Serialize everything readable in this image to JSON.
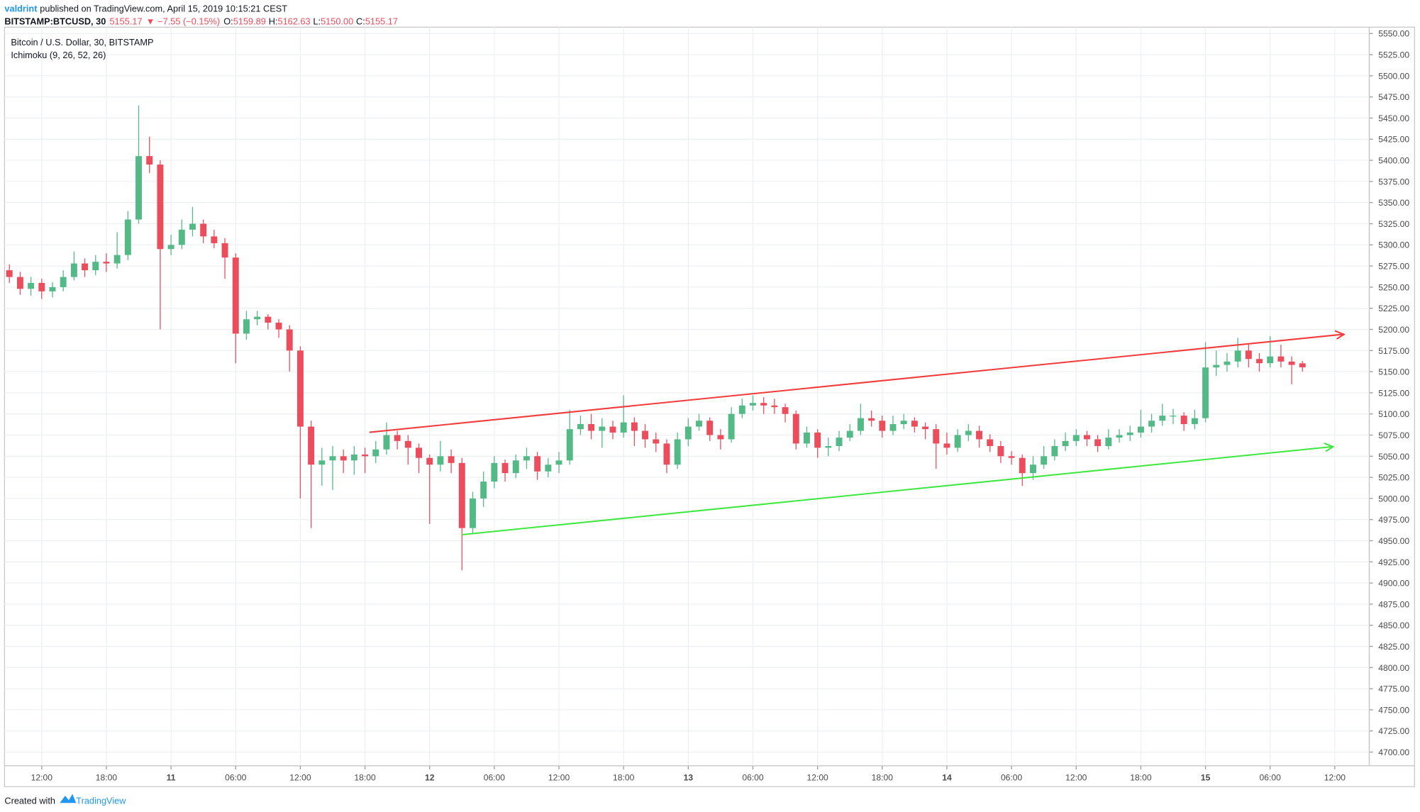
{
  "header": {
    "user": "valdrint",
    "published": "published on TradingView.com, April 15, 2019 10:15:21 CEST",
    "symbol": "BITSTAMP:BTCUSD, 30",
    "last": "5155.17",
    "arrow": "▼",
    "change": "−7.55 (−0.15%)",
    "ohlc": [
      {
        "label": "O:",
        "value": "5159.89"
      },
      {
        "label": "H:",
        "value": "5162.63"
      },
      {
        "label": "L:",
        "value": "5150.00"
      },
      {
        "label": "C:",
        "value": "5155.17"
      }
    ]
  },
  "footer": {
    "created": "Created with",
    "brand": "TradingView"
  },
  "chart_data": {
    "type": "candlestick",
    "title": "Bitcoin / U.S. Dollar, 30, BITSTAMP",
    "indicator": "Ichimoku (9, 26, 52, 26)",
    "up_color": "#53b987",
    "down_color": "#eb4d5c",
    "grid": true,
    "open": [
      5270,
      5262,
      5248,
      5255,
      5245,
      5250,
      5262,
      5278,
      5270,
      5280,
      5278,
      5288,
      5330,
      5405,
      5395,
      5295,
      5300,
      5318,
      5325,
      5310,
      5302,
      5285,
      5195,
      5212,
      5215,
      5208,
      5200,
      5175,
      5085,
      5040,
      5045,
      5050,
      5045,
      5052,
      5050,
      5058,
      5075,
      5068,
      5060,
      5048,
      5040,
      5050,
      5042,
      4965,
      5000,
      5020,
      5042,
      5030,
      5045,
      5050,
      5032,
      5040,
      5045,
      5082,
      5088,
      5080,
      5085,
      5078,
      5090,
      5080,
      5070,
      5065,
      5040,
      5070,
      5085,
      5092,
      5075,
      5070,
      5100,
      5110,
      5113,
      5110,
      5108,
      5100,
      5065,
      5078,
      5060,
      5062,
      5072,
      5080,
      5095,
      5092,
      5080,
      5088,
      5092,
      5085,
      5082,
      5065,
      5060,
      5075,
      5080,
      5070,
      5062,
      5050,
      5048,
      5030,
      5040,
      5050,
      5062,
      5068,
      5075,
      5070,
      5062,
      5072,
      5075,
      5078,
      5085,
      5092,
      5098,
      5098,
      5088,
      5095,
      5155,
      5158,
      5162,
      5175,
      5165,
      5160,
      5168,
      5162,
      5159.89
    ],
    "high": [
      5277,
      5268,
      5262,
      5260,
      5256,
      5270,
      5292,
      5284,
      5288,
      5290,
      5315,
      5340,
      5465,
      5428,
      5400,
      5312,
      5330,
      5345,
      5330,
      5318,
      5308,
      5290,
      5222,
      5222,
      5218,
      5212,
      5205,
      5180,
      5092,
      5060,
      5062,
      5058,
      5062,
      5060,
      5068,
      5090,
      5080,
      5075,
      5065,
      5052,
      5068,
      5058,
      5048,
      5008,
      5032,
      5050,
      5046,
      5052,
      5060,
      5055,
      5048,
      5055,
      5105,
      5098,
      5100,
      5095,
      5092,
      5122,
      5096,
      5088,
      5078,
      5070,
      5078,
      5095,
      5100,
      5096,
      5082,
      5108,
      5118,
      5122,
      5120,
      5118,
      5112,
      5104,
      5085,
      5082,
      5072,
      5080,
      5088,
      5112,
      5104,
      5098,
      5098,
      5100,
      5096,
      5090,
      5088,
      5078,
      5082,
      5088,
      5086,
      5076,
      5068,
      5056,
      5052,
      5050,
      5062,
      5070,
      5078,
      5082,
      5080,
      5075,
      5082,
      5082,
      5086,
      5105,
      5100,
      5112,
      5106,
      5102,
      5105,
      5185,
      5175,
      5172,
      5190,
      5182,
      5172,
      5192,
      5182,
      5168,
      5162.63
    ],
    "low": [
      5255,
      5241,
      5240,
      5236,
      5238,
      5245,
      5258,
      5262,
      5264,
      5268,
      5272,
      5282,
      5325,
      5385,
      5200,
      5288,
      5295,
      5310,
      5302,
      5296,
      5260,
      5160,
      5188,
      5205,
      5200,
      5190,
      5150,
      5000,
      4965,
      5015,
      5010,
      5030,
      5028,
      5030,
      5042,
      5052,
      5058,
      5040,
      5030,
      4970,
      5032,
      5030,
      4915,
      4958,
      4990,
      5012,
      5020,
      5024,
      5035,
      5022,
      5025,
      5030,
      5040,
      5075,
      5070,
      5060,
      5070,
      5072,
      5062,
      5060,
      5055,
      5030,
      5035,
      5062,
      5080,
      5068,
      5058,
      5066,
      5095,
      5104,
      5100,
      5100,
      5090,
      5058,
      5060,
      5048,
      5050,
      5056,
      5068,
      5075,
      5085,
      5072,
      5075,
      5082,
      5078,
      5070,
      5035,
      5052,
      5055,
      5068,
      5060,
      5055,
      5042,
      5040,
      5015,
      5022,
      5035,
      5045,
      5056,
      5062,
      5062,
      5055,
      5058,
      5066,
      5068,
      5072,
      5078,
      5086,
      5088,
      5080,
      5082,
      5090,
      5145,
      5150,
      5155,
      5155,
      5150,
      5155,
      5155,
      5135,
      5150.0
    ],
    "close": [
      5262,
      5248,
      5255,
      5245,
      5250,
      5262,
      5278,
      5270,
      5280,
      5278,
      5288,
      5330,
      5405,
      5395,
      5295,
      5300,
      5318,
      5325,
      5310,
      5302,
      5285,
      5195,
      5212,
      5215,
      5208,
      5200,
      5175,
      5085,
      5040,
      5045,
      5050,
      5045,
      5052,
      5050,
      5058,
      5075,
      5068,
      5060,
      5048,
      5040,
      5050,
      5042,
      4965,
      5000,
      5020,
      5042,
      5030,
      5045,
      5050,
      5032,
      5040,
      5045,
      5082,
      5088,
      5080,
      5085,
      5078,
      5090,
      5080,
      5070,
      5065,
      5040,
      5070,
      5085,
      5092,
      5075,
      5070,
      5100,
      5110,
      5113,
      5110,
      5108,
      5100,
      5065,
      5078,
      5060,
      5062,
      5072,
      5080,
      5095,
      5092,
      5080,
      5088,
      5092,
      5085,
      5082,
      5065,
      5060,
      5075,
      5080,
      5070,
      5062,
      5050,
      5048,
      5030,
      5040,
      5050,
      5062,
      5068,
      5075,
      5070,
      5062,
      5072,
      5075,
      5078,
      5085,
      5092,
      5098,
      5098,
      5088,
      5095,
      5155,
      5158,
      5162,
      5175,
      5165,
      5160,
      5168,
      5162,
      5158,
      5155.17
    ],
    "xlim": [
      -0.45,
      126.2
    ],
    "xticks": [
      {
        "value": 3,
        "label": "12:00"
      },
      {
        "value": 9,
        "label": "18:00"
      },
      {
        "value": 15,
        "label": "11"
      },
      {
        "value": 21,
        "label": "06:00"
      },
      {
        "value": 27,
        "label": "12:00"
      },
      {
        "value": 33,
        "label": "18:00"
      },
      {
        "value": 39,
        "label": "12"
      },
      {
        "value": 45,
        "label": "06:00"
      },
      {
        "value": 51,
        "label": "12:00"
      },
      {
        "value": 57,
        "label": "18:00"
      },
      {
        "value": 63,
        "label": "13"
      },
      {
        "value": 69,
        "label": "06:00"
      },
      {
        "value": 75,
        "label": "12:00"
      },
      {
        "value": 81,
        "label": "18:00"
      },
      {
        "value": 87,
        "label": "14"
      },
      {
        "value": 93,
        "label": "06:00"
      },
      {
        "value": 99,
        "label": "12:00"
      },
      {
        "value": 105,
        "label": "18:00"
      },
      {
        "value": 111,
        "label": "15"
      },
      {
        "value": 117,
        "label": "06:00"
      },
      {
        "value": 123,
        "label": "12:00"
      }
    ],
    "ylim": [
      4683.8,
      5557.5
    ],
    "yticks": [
      {
        "value": 5550,
        "label": "5550.00"
      },
      {
        "value": 5525,
        "label": "5525.00"
      },
      {
        "value": 5500,
        "label": "5500.00"
      },
      {
        "value": 5475,
        "label": "5475.00"
      },
      {
        "value": 5450,
        "label": "5450.00"
      },
      {
        "value": 5425,
        "label": "5425.00"
      },
      {
        "value": 5400,
        "label": "5400.00"
      },
      {
        "value": 5375,
        "label": "5375.00"
      },
      {
        "value": 5350,
        "label": "5350.00"
      },
      {
        "value": 5325,
        "label": "5325.00"
      },
      {
        "value": 5300,
        "label": "5300.00"
      },
      {
        "value": 5275,
        "label": "5275.00"
      },
      {
        "value": 5250,
        "label": "5250.00"
      },
      {
        "value": 5225,
        "label": "5225.00"
      },
      {
        "value": 5200,
        "label": "5200.00"
      },
      {
        "value": 5175,
        "label": "5175.00"
      },
      {
        "value": 5150,
        "label": "5150.00"
      },
      {
        "value": 5125,
        "label": "5125.00"
      },
      {
        "value": 5100,
        "label": "5100.00"
      },
      {
        "value": 5075,
        "label": "5075.00"
      },
      {
        "value": 5050,
        "label": "5050.00"
      },
      {
        "value": 5025,
        "label": "5025.00"
      },
      {
        "value": 5000,
        "label": "5000.00"
      },
      {
        "value": 4975,
        "label": "4975.00"
      },
      {
        "value": 4950,
        "label": "4950.00"
      },
      {
        "value": 4925,
        "label": "4925.00"
      },
      {
        "value": 4900,
        "label": "4900.00"
      },
      {
        "value": 4875,
        "label": "4875.00"
      },
      {
        "value": 4850,
        "label": "4850.00"
      },
      {
        "value": 4825,
        "label": "4825.00"
      },
      {
        "value": 4800,
        "label": "4800.00"
      },
      {
        "value": 4775,
        "label": "4775.00"
      },
      {
        "value": 4750,
        "label": "4750.00"
      },
      {
        "value": 4725,
        "label": "4725.00"
      },
      {
        "value": 4700,
        "label": "4700.00"
      }
    ]
  }
}
